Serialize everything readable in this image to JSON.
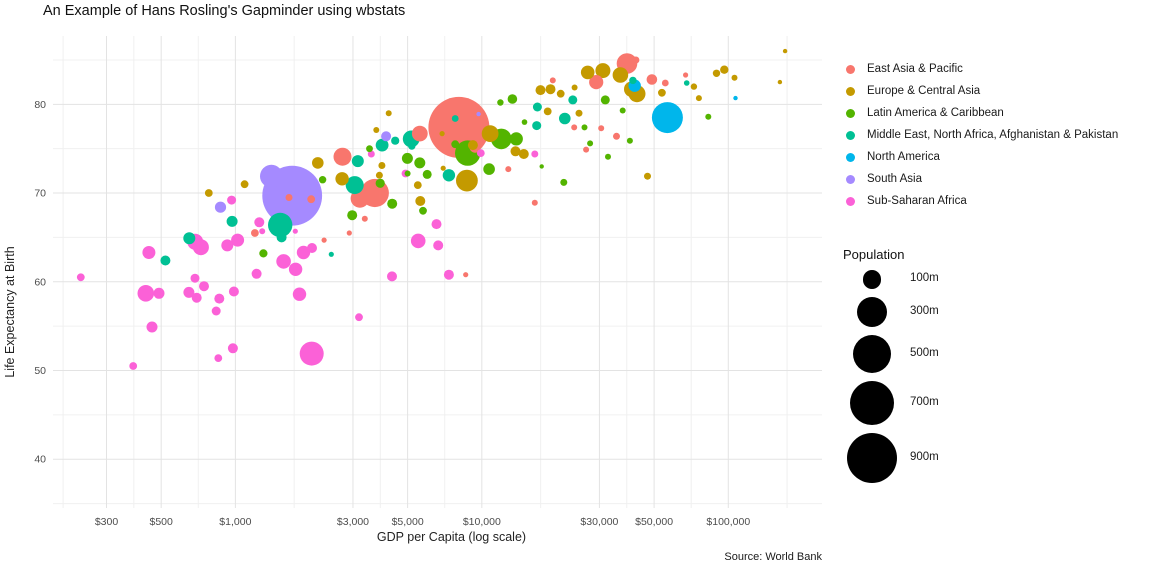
{
  "title": "An Example of Hans Rosling's Gapminder using wbstats",
  "source": "Source: World Bank",
  "chart_data": {
    "type": "scatter",
    "title": "An Example of Hans Rosling's Gapminder using wbstats",
    "xlabel": "GDP per Capita (log scale)",
    "ylabel": "Life Expectancy at Birth",
    "x_scale": "log",
    "xlim": [
      182,
      240000
    ],
    "ylim": [
      34.5,
      87.7
    ],
    "grid": "major+minor",
    "legend_position": "right",
    "x_ticks": [
      {
        "value": 300,
        "label": "$300"
      },
      {
        "value": 500,
        "label": "$500"
      },
      {
        "value": 1000,
        "label": "$1,000"
      },
      {
        "value": 3000,
        "label": "$3,000"
      },
      {
        "value": 5000,
        "label": "$5,000"
      },
      {
        "value": 10000,
        "label": "$10,000"
      },
      {
        "value": 30000,
        "label": "$30,000"
      },
      {
        "value": 50000,
        "label": "$50,000"
      },
      {
        "value": 100000,
        "label": "$100,000"
      }
    ],
    "y_ticks": [
      {
        "value": 40,
        "label": "40"
      },
      {
        "value": 50,
        "label": "50"
      },
      {
        "value": 60,
        "label": "60"
      },
      {
        "value": 70,
        "label": "70"
      },
      {
        "value": 80,
        "label": "80"
      }
    ],
    "size_legend": {
      "title": "Population",
      "values": [
        100,
        300,
        500,
        700,
        900
      ],
      "labels": [
        "100m",
        "300m",
        "500m",
        "700m",
        "900m"
      ]
    },
    "series": [
      {
        "name": "East Asia & Pacific",
        "color": "#F8766D",
        "points": [
          [
            8070,
            77.4,
            1371
          ],
          [
            5600,
            76.7,
            68
          ],
          [
            38800,
            84.6,
            127
          ],
          [
            42200,
            85.0,
            7
          ],
          [
            29100,
            82.5,
            51
          ],
          [
            49000,
            82.8,
            24
          ],
          [
            55500,
            82.4,
            6
          ],
          [
            67100,
            83.3,
            2
          ],
          [
            19400,
            82.7,
            4
          ],
          [
            3680,
            70.0,
            258
          ],
          [
            3200,
            69.4,
            101
          ],
          [
            2720,
            74.1,
            92
          ],
          [
            9400,
            75.2,
            31
          ],
          [
            1200,
            65.5,
            10
          ],
          [
            2030,
            69.3,
            10
          ],
          [
            1650,
            69.5,
            7
          ],
          [
            2290,
            64.7,
            2
          ],
          [
            2900,
            65.5,
            2
          ],
          [
            3350,
            67.1,
            4
          ],
          [
            8600,
            60.8,
            2
          ],
          [
            16400,
            68.9,
            4
          ],
          [
            12800,
            72.7,
            4
          ],
          [
            26500,
            74.9,
            4
          ],
          [
            23700,
            77.4,
            4
          ],
          [
            30500,
            77.3,
            4
          ],
          [
            35200,
            76.4,
            7
          ]
        ]
      },
      {
        "name": "Europe & Central Asia",
        "color": "#C49A00",
        "points": [
          [
            780,
            70.0,
            10
          ],
          [
            1090,
            71.0,
            10
          ],
          [
            2160,
            73.4,
            31
          ],
          [
            2710,
            71.6,
            45
          ],
          [
            3730,
            77.1,
            4
          ],
          [
            4190,
            79.0,
            4
          ],
          [
            3930,
            73.1,
            7
          ],
          [
            3840,
            72.0,
            7
          ],
          [
            5500,
            70.9,
            10
          ],
          [
            5630,
            69.1,
            20
          ],
          [
            6900,
            76.7,
            2
          ],
          [
            9200,
            75.4,
            20
          ],
          [
            10800,
            76.7,
            78
          ],
          [
            8700,
            71.4,
            144
          ],
          [
            13700,
            74.7,
            20
          ],
          [
            14800,
            74.4,
            20
          ],
          [
            6970,
            72.8,
            2
          ],
          [
            17300,
            81.6,
            20
          ],
          [
            19000,
            81.7,
            20
          ],
          [
            18500,
            79.2,
            10
          ],
          [
            20900,
            81.2,
            10
          ],
          [
            23800,
            81.9,
            4
          ],
          [
            24800,
            79.0,
            7
          ],
          [
            26900,
            83.6,
            46
          ],
          [
            31000,
            83.8,
            60
          ],
          [
            36500,
            83.3,
            66
          ],
          [
            40600,
            81.7,
            65
          ],
          [
            42600,
            81.2,
            81
          ],
          [
            53800,
            81.3,
            10
          ],
          [
            72500,
            82.0,
            5
          ],
          [
            89600,
            83.5,
            8
          ],
          [
            76000,
            80.7,
            4
          ],
          [
            96300,
            83.9,
            12
          ],
          [
            106000,
            83.0,
            4
          ],
          [
            162000,
            82.5,
            1
          ],
          [
            170000,
            86.0,
            1
          ],
          [
            47000,
            71.9,
            7
          ]
        ]
      },
      {
        "name": "Latin America & Caribbean",
        "color": "#53B400",
        "points": [
          [
            1300,
            63.2,
            11
          ],
          [
            8760,
            74.5,
            206
          ],
          [
            12000,
            76.1,
            127
          ],
          [
            13800,
            76.1,
            43
          ],
          [
            11900,
            80.2,
            5
          ],
          [
            13300,
            80.6,
            18
          ],
          [
            14900,
            78.0,
            3
          ],
          [
            17500,
            73.0,
            1
          ],
          [
            10700,
            72.7,
            31
          ],
          [
            3500,
            75.0,
            6
          ],
          [
            3870,
            71.1,
            16
          ],
          [
            4330,
            68.8,
            20
          ],
          [
            2980,
            67.5,
            20
          ],
          [
            2260,
            71.5,
            8
          ],
          [
            5770,
            68.0,
            10
          ],
          [
            4990,
            73.9,
            27
          ],
          [
            5600,
            73.4,
            27
          ],
          [
            6000,
            72.1,
            15
          ],
          [
            5000,
            72.2,
            4
          ],
          [
            7800,
            75.5,
            10
          ],
          [
            27500,
            75.6,
            4
          ],
          [
            26100,
            77.4,
            4
          ],
          [
            31700,
            80.5,
            15
          ],
          [
            32500,
            74.1,
            4
          ],
          [
            37300,
            79.3,
            4
          ],
          [
            39900,
            75.9,
            4
          ],
          [
            83000,
            78.6,
            4
          ],
          [
            21500,
            71.2,
            7
          ]
        ]
      },
      {
        "name": "Middle East, North Africa, Afghanistan & Pakistan",
        "color": "#00C094",
        "points": [
          [
            520,
            62.4,
            20
          ],
          [
            650,
            64.9,
            34
          ],
          [
            1520,
            66.4,
            189
          ],
          [
            970,
            66.8,
            27
          ],
          [
            1540,
            65.0,
            20
          ],
          [
            3140,
            73.6,
            34
          ],
          [
            3050,
            70.9,
            92
          ],
          [
            3940,
            75.4,
            40
          ],
          [
            4450,
            75.9,
            11
          ],
          [
            5170,
            76.1,
            79
          ],
          [
            5200,
            75.3,
            8
          ],
          [
            7350,
            72.0,
            36
          ],
          [
            7800,
            78.4,
            6
          ],
          [
            16800,
            79.7,
            15
          ],
          [
            16700,
            77.6,
            15
          ],
          [
            21700,
            78.4,
            31
          ],
          [
            23400,
            80.5,
            15
          ],
          [
            41000,
            82.7,
            8
          ],
          [
            67800,
            82.4,
            3
          ],
          [
            2450,
            63.1,
            2
          ]
        ]
      },
      {
        "name": "North America",
        "color": "#00B6EB",
        "points": [
          [
            56600,
            78.5,
            321
          ],
          [
            41700,
            82.1,
            36
          ],
          [
            107000,
            80.7,
            1
          ]
        ]
      },
      {
        "name": "South Asia",
        "color": "#A58AFF",
        "points": [
          [
            1700,
            69.7,
            1311
          ],
          [
            1400,
            71.9,
            161
          ],
          [
            870,
            68.4,
            28
          ],
          [
            4090,
            76.4,
            21
          ],
          [
            9700,
            78.9,
            1
          ]
        ]
      },
      {
        "name": "Sub-Saharan Africa",
        "color": "#FB61D7",
        "points": [
          [
            236,
            60.5,
            10
          ],
          [
            446,
            63.3,
            41
          ],
          [
            687,
            64.5,
            70
          ],
          [
            725,
            63.9,
            70
          ],
          [
            927,
            64.1,
            34
          ],
          [
            1021,
            64.7,
            41
          ],
          [
            1220,
            60.9,
            20
          ],
          [
            433,
            58.7,
            77
          ],
          [
            490,
            58.7,
            27
          ],
          [
            648,
            58.8,
            27
          ],
          [
            697,
            58.2,
            20
          ],
          [
            686,
            60.4,
            15
          ],
          [
            746,
            59.5,
            20
          ],
          [
            861,
            58.1,
            20
          ],
          [
            836,
            56.7,
            15
          ],
          [
            986,
            58.9,
            20
          ],
          [
            459,
            54.9,
            27
          ],
          [
            385,
            50.5,
            10
          ],
          [
            853,
            51.4,
            10
          ],
          [
            977,
            52.5,
            20
          ],
          [
            2040,
            51.9,
            181
          ],
          [
            1820,
            58.6,
            45
          ],
          [
            1570,
            62.3,
            55
          ],
          [
            1755,
            61.4,
            45
          ],
          [
            1890,
            63.3,
            45
          ],
          [
            2046,
            63.8,
            20
          ],
          [
            3175,
            56.0,
            10
          ],
          [
            4320,
            60.6,
            20
          ],
          [
            5520,
            64.6,
            55
          ],
          [
            6550,
            66.5,
            20
          ],
          [
            6650,
            64.1,
            20
          ],
          [
            7350,
            60.8,
            20
          ],
          [
            4900,
            72.2,
            10
          ],
          [
            3560,
            74.4,
            7
          ],
          [
            9900,
            74.5,
            10
          ],
          [
            16400,
            74.4,
            7
          ],
          [
            1250,
            66.7,
            20
          ],
          [
            1285,
            65.7,
            4
          ],
          [
            1750,
            65.7,
            2
          ],
          [
            965,
            69.2,
            15
          ]
        ]
      }
    ]
  }
}
